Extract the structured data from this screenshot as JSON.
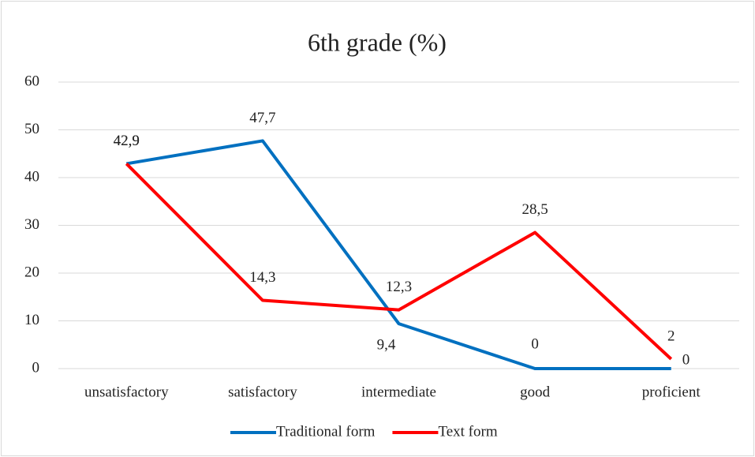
{
  "chart_data": {
    "type": "line",
    "title": "6th grade (%)",
    "categories": [
      "unsatisfactory",
      "satisfactory",
      "intermediate",
      "good",
      "proficient"
    ],
    "series": [
      {
        "name": "Traditional form",
        "color": "#0070c0",
        "values": [
          42.9,
          47.7,
          9.4,
          0,
          0
        ],
        "value_labels": [
          "42,9",
          "47,7",
          "9,4",
          "0",
          "0"
        ]
      },
      {
        "name": "Text form",
        "color": "#ff0000",
        "values": [
          42.9,
          14.3,
          12.3,
          28.5,
          2
        ],
        "value_labels": [
          "42,9",
          "14,3",
          "12,3",
          "28,5",
          "2"
        ]
      }
    ],
    "ylim": [
      0,
      60
    ],
    "yticks": [
      0,
      10,
      20,
      30,
      40,
      50,
      60
    ],
    "grid": true,
    "legend": "bottom"
  }
}
